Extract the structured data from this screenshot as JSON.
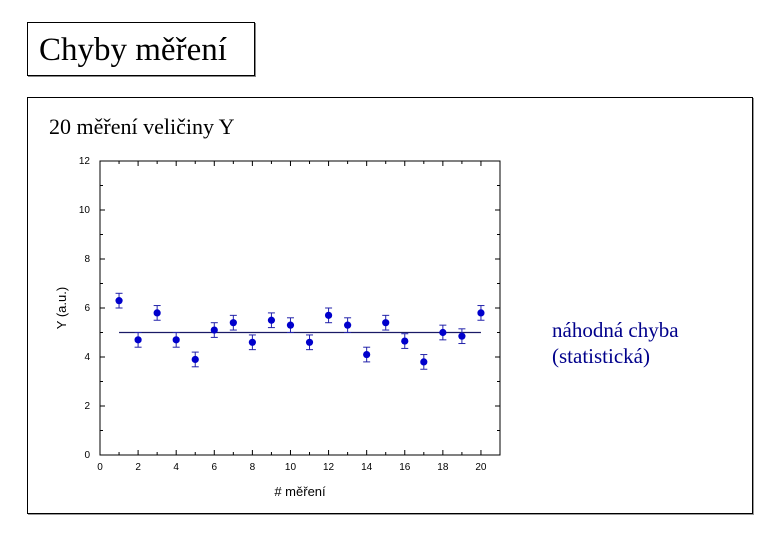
{
  "slide_title": "Chyby měření",
  "subtitle": "20 měření veličiny Y",
  "annotation": {
    "line1": "náhodná chyba",
    "line2": "(statistická)"
  },
  "colors": {
    "points": "#0000cc",
    "errorbars": "#2222aa",
    "mean_line": "#1a1a66",
    "annotation_text": "#00008b"
  },
  "chart_data": {
    "type": "scatter",
    "xlabel": "# měření",
    "ylabel": "Y (a.u.)",
    "xlim": [
      0,
      21
    ],
    "ylim": [
      0,
      12
    ],
    "xticks": [
      0,
      2,
      4,
      6,
      8,
      10,
      12,
      14,
      16,
      18,
      20
    ],
    "yticks": [
      0,
      2,
      4,
      6,
      8,
      10,
      12
    ],
    "x": [
      1,
      2,
      3,
      4,
      5,
      6,
      7,
      8,
      9,
      10,
      11,
      12,
      13,
      14,
      15,
      16,
      17,
      18,
      19,
      20
    ],
    "y": [
      6.3,
      4.7,
      5.8,
      4.7,
      3.9,
      5.1,
      5.4,
      4.6,
      5.5,
      5.3,
      4.6,
      5.7,
      5.3,
      4.1,
      5.4,
      4.65,
      3.8,
      5.0,
      4.85,
      5.8
    ],
    "yerr": 0.3,
    "mean_line": {
      "y": 5.0,
      "x_from": 1,
      "x_to": 20
    },
    "grid": false
  }
}
